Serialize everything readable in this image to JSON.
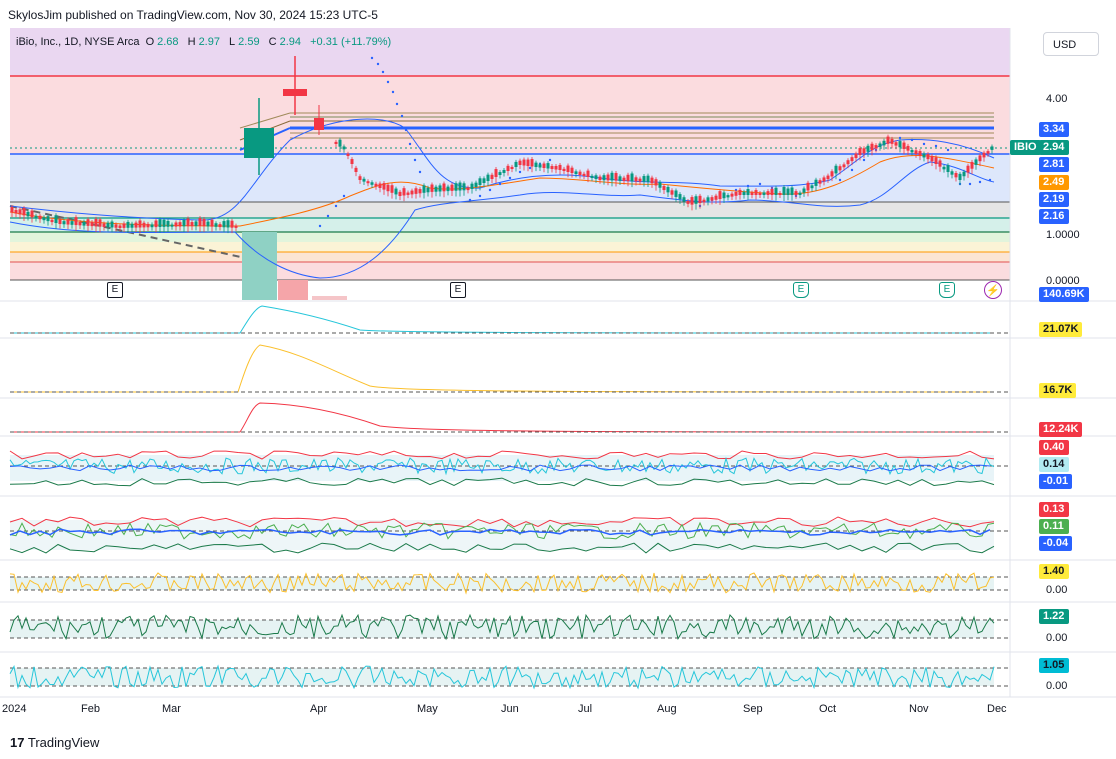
{
  "header": {
    "publisher": "SkylosJim published on TradingView.com, Nov 30, 2024 15:23 UTC-5"
  },
  "symbol": {
    "name": "iBio, Inc., 1D, NYSE Arca",
    "open_label": "O",
    "open": "2.68",
    "high_label": "H",
    "high": "2.97",
    "low_label": "L",
    "low": "2.59",
    "close_label": "C",
    "close": "2.94",
    "change": "+0.31 (+11.79%)"
  },
  "currency": "USD",
  "ticker_tag": "IBIO",
  "colors": {
    "up": "#089981",
    "down": "#f23645",
    "blue": "#2962ff",
    "orange": "#ff9800",
    "purple_bg": "#e9d5f2",
    "pink_bg": "#fbd8dc",
    "blue_bg": "#dde8fb"
  },
  "price_tags": [
    {
      "text": "3.34",
      "color": "#2962ff"
    },
    {
      "text": "2.94",
      "color": "#089981"
    },
    {
      "text": "2.81",
      "color": "#2962ff"
    },
    {
      "text": "2.49",
      "color": "#ff9800"
    },
    {
      "text": "2.19",
      "color": "#2962ff"
    },
    {
      "text": "2.16",
      "color": "#2962ff"
    }
  ],
  "axis_labels": [
    "4.00",
    "1.0000",
    "0.0000"
  ],
  "pane_tags": [
    {
      "text": "140.69K",
      "color": "#2962ff"
    },
    {
      "text": "21.07K",
      "color": "#ffeb3b"
    },
    {
      "text": "16.7K",
      "color": "#ffeb3b"
    },
    {
      "text": "12.24K",
      "color": "#f23645"
    },
    {
      "text": "0.40",
      "color": "#f23645"
    },
    {
      "text": "0.14",
      "color": "#b2ebf2"
    },
    {
      "text": "-0.01",
      "color": "#2962ff"
    },
    {
      "text": "0.13",
      "color": "#f23645"
    },
    {
      "text": "0.11",
      "color": "#4caf50"
    },
    {
      "text": "-0.04",
      "color": "#2962ff"
    },
    {
      "text": "1.40",
      "color": "#ffeb3b"
    },
    {
      "text": "1.22",
      "color": "#089981"
    },
    {
      "text": "1.05",
      "color": "#00bcd4"
    }
  ],
  "pane_axis_labels": [
    "0.00",
    "0.00",
    "0.00"
  ],
  "earnings_badge": "E",
  "footer": {
    "brand": "TradingView"
  },
  "chart_data": {
    "type": "line",
    "x_ticks": [
      "2024",
      "Feb",
      "Mar",
      "Apr",
      "May",
      "Jun",
      "Jul",
      "Aug",
      "Sep",
      "Oct",
      "Nov",
      "Dec"
    ],
    "last_close": 2.94,
    "y_ticks": [
      4.0,
      1.0,
      0.0
    ]
  }
}
